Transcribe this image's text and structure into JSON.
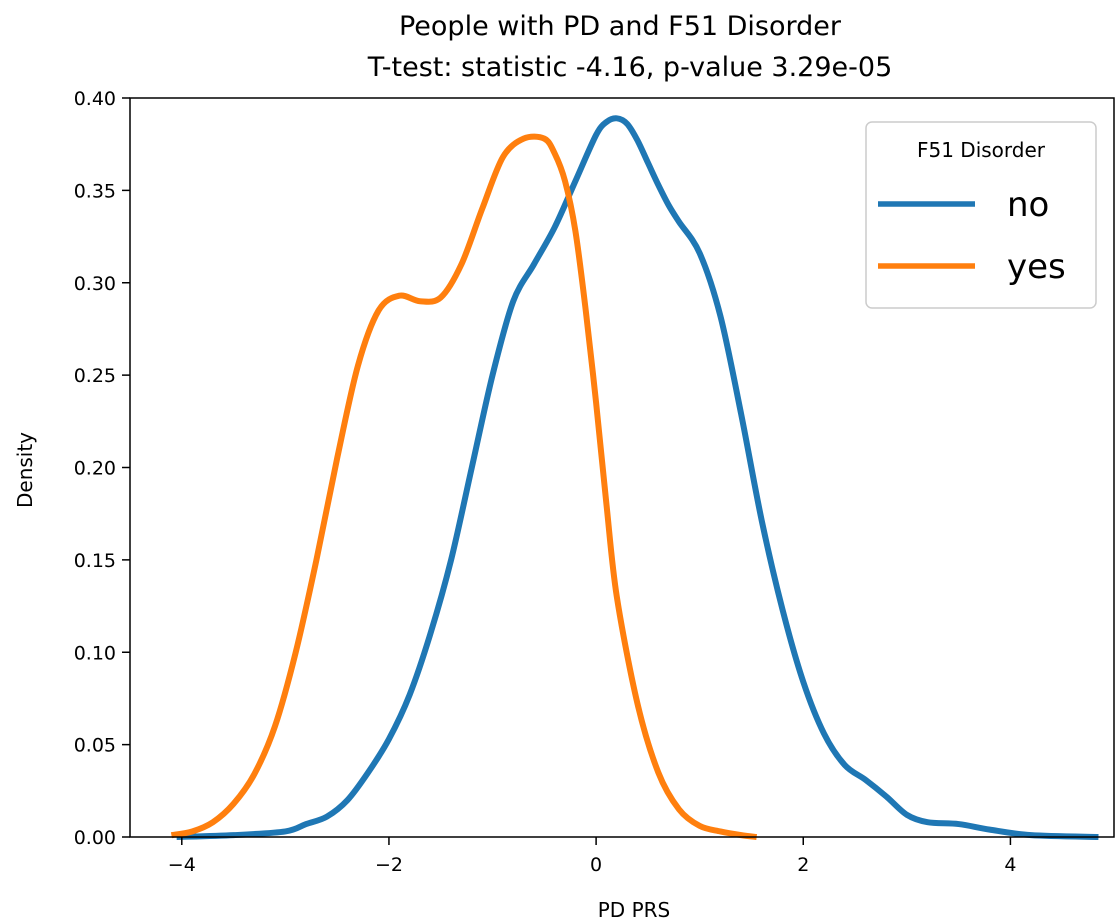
{
  "chart_data": {
    "type": "line",
    "title": "People with PD and F51 Disorder",
    "subtitle": "T-test: statistic -4.16, p-value 3.29e-05",
    "xlabel": "PD PRS",
    "ylabel": "Density",
    "xlim": [
      -4.5,
      5.0
    ],
    "ylim": [
      0.0,
      0.4
    ],
    "x_ticks": [
      -4,
      -2,
      0,
      2,
      4
    ],
    "x_tick_labels": [
      "−4",
      "−2",
      "0",
      "2",
      "4"
    ],
    "y_ticks": [
      0.0,
      0.05,
      0.1,
      0.15,
      0.2,
      0.25,
      0.3,
      0.35,
      0.4
    ],
    "y_tick_labels": [
      "0.00",
      "0.05",
      "0.10",
      "0.15",
      "0.20",
      "0.25",
      "0.30",
      "0.35",
      "0.40"
    ],
    "grid": false,
    "legend": {
      "title": "F51 Disorder",
      "placement": "top-right"
    },
    "series": [
      {
        "name": "no",
        "color": "#1f77b4",
        "x": [
          -4.05,
          -3.5,
          -3.0,
          -2.8,
          -2.6,
          -2.4,
          -2.2,
          -2.0,
          -1.8,
          -1.6,
          -1.4,
          -1.2,
          -1.0,
          -0.8,
          -0.6,
          -0.4,
          -0.2,
          0.0,
          0.1,
          0.2,
          0.3,
          0.4,
          0.5,
          0.6,
          0.7,
          0.8,
          1.0,
          1.2,
          1.4,
          1.6,
          1.8,
          2.0,
          2.2,
          2.4,
          2.6,
          2.8,
          3.0,
          3.2,
          3.5,
          3.8,
          4.2,
          4.85
        ],
        "values": [
          0.0,
          0.001,
          0.003,
          0.007,
          0.011,
          0.02,
          0.035,
          0.053,
          0.077,
          0.11,
          0.15,
          0.2,
          0.25,
          0.29,
          0.31,
          0.33,
          0.355,
          0.38,
          0.387,
          0.389,
          0.386,
          0.377,
          0.365,
          0.353,
          0.342,
          0.333,
          0.316,
          0.282,
          0.229,
          0.171,
          0.123,
          0.084,
          0.056,
          0.039,
          0.031,
          0.022,
          0.012,
          0.008,
          0.007,
          0.004,
          0.001,
          0.0
        ]
      },
      {
        "name": "yes",
        "color": "#ff7f0e",
        "x": [
          -4.1,
          -3.9,
          -3.7,
          -3.5,
          -3.3,
          -3.1,
          -2.9,
          -2.7,
          -2.5,
          -2.3,
          -2.1,
          -1.9,
          -1.7,
          -1.5,
          -1.3,
          -1.1,
          -0.9,
          -0.7,
          -0.5,
          -0.4,
          -0.3,
          -0.2,
          -0.1,
          0.0,
          0.1,
          0.2,
          0.4,
          0.6,
          0.8,
          1.0,
          1.2,
          1.4,
          1.55
        ],
        "values": [
          0.001,
          0.003,
          0.008,
          0.018,
          0.034,
          0.06,
          0.1,
          0.15,
          0.205,
          0.255,
          0.285,
          0.293,
          0.29,
          0.292,
          0.31,
          0.34,
          0.368,
          0.378,
          0.378,
          0.37,
          0.355,
          0.328,
          0.285,
          0.235,
          0.18,
          0.13,
          0.072,
          0.035,
          0.015,
          0.006,
          0.003,
          0.001,
          0.0
        ]
      }
    ]
  }
}
